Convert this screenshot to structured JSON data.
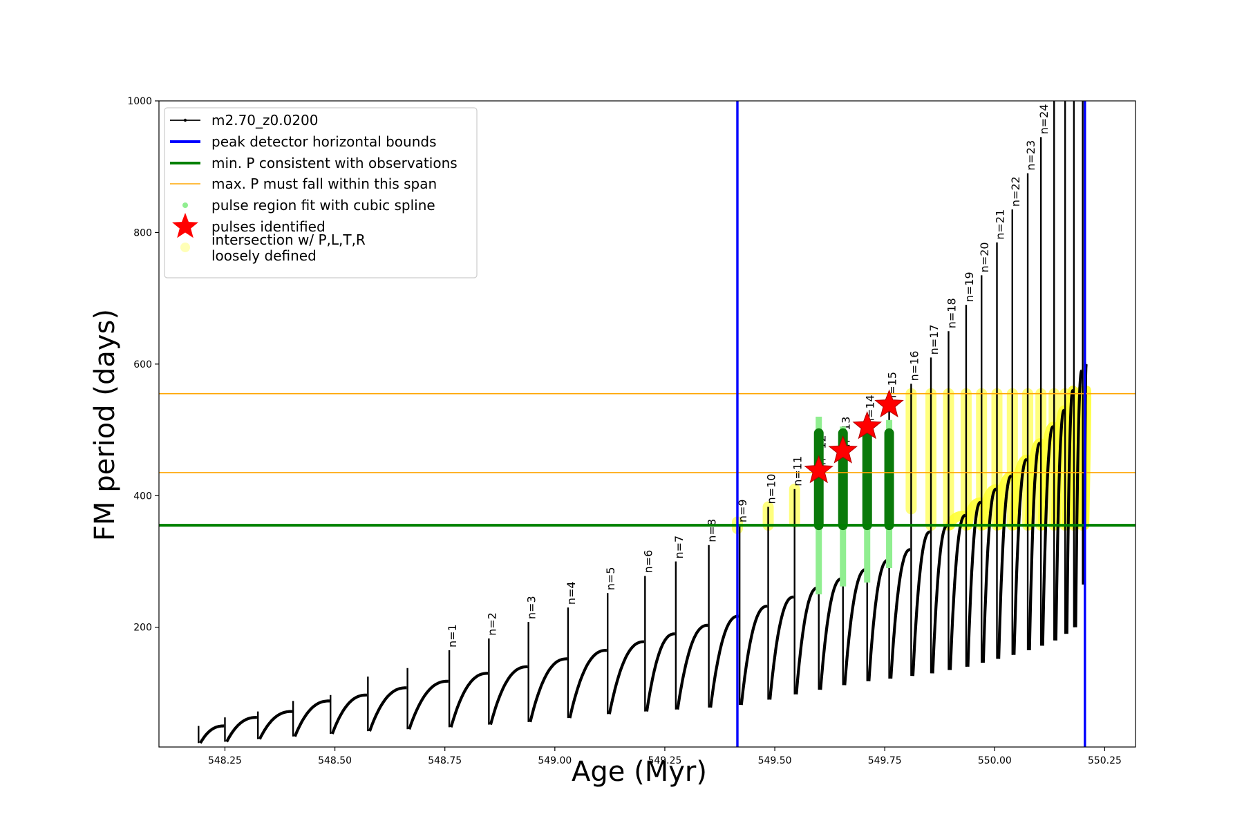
{
  "chart_data": {
    "type": "line",
    "title": "",
    "xlabel": "Age (Myr)",
    "ylabel": "FM period (days)",
    "xlim": [
      548.1,
      550.32
    ],
    "ylim": [
      18,
      1000
    ],
    "xticks": [
      548.25,
      548.5,
      548.75,
      549.0,
      549.25,
      549.5,
      549.75,
      550.0,
      550.25
    ],
    "xtick_labels": [
      "548.25",
      "548.50",
      "548.75",
      "549.00",
      "549.25",
      "549.50",
      "549.75",
      "550.00",
      "550.25"
    ],
    "yticks": [
      200,
      400,
      600,
      800,
      1000
    ],
    "ytick_labels": [
      "200",
      "400",
      "600",
      "800",
      "1000"
    ],
    "grid": false,
    "legend_position": "top-left",
    "legend": [
      {
        "label": "m2.70_z0.0200",
        "kind": "line-marker",
        "color": "#000000"
      },
      {
        "label": "peak detector horizontal bounds",
        "kind": "line",
        "color": "#0000ff"
      },
      {
        "label": "min. P consistent with observations",
        "kind": "line",
        "color": "#008000"
      },
      {
        "label": "max. P must fall within this span",
        "kind": "line",
        "color": "#ffa500"
      },
      {
        "label": "pulse region fit with cubic spline",
        "kind": "dot",
        "color": "#90ee90"
      },
      {
        "label": "pulses identified",
        "kind": "star",
        "color": "#ff0000"
      },
      {
        "label": "intersection w/ P,L,T,R\nloosely defined",
        "kind": "dot",
        "color": "#ffff99"
      }
    ],
    "reference_lines": {
      "vertical_blue": [
        549.415,
        550.205
      ],
      "horizontal_green": [
        355
      ],
      "horizontal_orange": [
        435,
        555
      ]
    },
    "series": [
      {
        "name": "m2.70_z0.0200",
        "color": "#000000",
        "cycles": [
          {
            "start": 548.19,
            "low": 24,
            "top": 50,
            "peak": 50
          },
          {
            "start": 548.25,
            "low": 26,
            "top": 63,
            "peak": 63
          },
          {
            "start": 548.325,
            "low": 30,
            "top": 72,
            "peak": 72
          },
          {
            "start": 548.405,
            "low": 34,
            "top": 88,
            "peak": 88
          },
          {
            "start": 548.49,
            "low": 38,
            "top": 97,
            "peak": 97
          },
          {
            "start": 548.575,
            "low": 42,
            "top": 108,
            "peak": 125
          },
          {
            "start": 548.665,
            "low": 45,
            "top": 118,
            "peak": 138
          },
          {
            "start": 548.76,
            "low": 48,
            "top": 130,
            "peak": 165,
            "label": "n=1"
          },
          {
            "start": 548.85,
            "low": 52,
            "top": 140,
            "peak": 183,
            "label": "n=2"
          },
          {
            "start": 548.94,
            "low": 56,
            "top": 152,
            "peak": 208,
            "label": "n=3"
          },
          {
            "start": 549.03,
            "low": 62,
            "top": 165,
            "peak": 230,
            "label": "n=4"
          },
          {
            "start": 549.12,
            "low": 68,
            "top": 178,
            "peak": 252,
            "label": "n=5"
          },
          {
            "start": 549.205,
            "low": 72,
            "top": 190,
            "peak": 278,
            "label": "n=6"
          },
          {
            "start": 549.275,
            "low": 75,
            "top": 203,
            "peak": 300,
            "label": "n=7"
          },
          {
            "start": 549.35,
            "low": 78,
            "top": 217,
            "peak": 325,
            "label": "n=8"
          },
          {
            "start": 549.42,
            "low": 82,
            "top": 232,
            "peak": 355,
            "label": "n=9"
          },
          {
            "start": 549.485,
            "low": 90,
            "top": 246,
            "peak": 383,
            "label": "n=10"
          },
          {
            "start": 549.545,
            "low": 98,
            "top": 260,
            "peak": 410,
            "label": "n=11"
          },
          {
            "start": 549.6,
            "low": 105,
            "top": 274,
            "peak": 442,
            "label": "n=12"
          },
          {
            "start": 549.655,
            "low": 112,
            "top": 288,
            "peak": 470,
            "label": "n=13"
          },
          {
            "start": 549.71,
            "low": 118,
            "top": 302,
            "peak": 503,
            "label": "n=14"
          },
          {
            "start": 549.76,
            "low": 122,
            "top": 318,
            "peak": 538,
            "label": "n=15"
          },
          {
            "start": 549.81,
            "low": 126,
            "top": 345,
            "peak": 570,
            "label": "n=16"
          },
          {
            "start": 549.855,
            "low": 130,
            "top": 355,
            "peak": 610,
            "label": "n=17"
          },
          {
            "start": 549.895,
            "low": 135,
            "top": 370,
            "peak": 650,
            "label": "n=18"
          },
          {
            "start": 549.935,
            "low": 140,
            "top": 390,
            "peak": 690,
            "label": "n=19"
          },
          {
            "start": 549.97,
            "low": 146,
            "top": 410,
            "peak": 735,
            "label": "n=20"
          },
          {
            "start": 550.005,
            "low": 152,
            "top": 430,
            "peak": 785,
            "label": "n=21"
          },
          {
            "start": 550.04,
            "low": 158,
            "top": 455,
            "peak": 835,
            "label": "n=22"
          },
          {
            "start": 550.075,
            "low": 165,
            "top": 480,
            "peak": 890,
            "label": "n=23"
          },
          {
            "start": 550.105,
            "low": 172,
            "top": 505,
            "peak": 945,
            "label": "n=24"
          },
          {
            "start": 550.135,
            "low": 180,
            "top": 530,
            "peak": 1000
          },
          {
            "start": 550.16,
            "low": 190,
            "top": 560,
            "peak": 1000
          },
          {
            "start": 550.18,
            "low": 200,
            "top": 590,
            "peak": 1000
          },
          {
            "start": 550.2,
            "low": 265,
            "top": 600,
            "peak": 1000
          }
        ],
        "end_x": 550.21
      }
    ],
    "pulse_regions": [
      {
        "x": 549.6,
        "spline_low": 250,
        "spline_high": 520,
        "fit_low": 355,
        "fit_high": 495
      },
      {
        "x": 549.655,
        "spline_low": 262,
        "spline_high": 505,
        "fit_low": 355,
        "fit_high": 495
      },
      {
        "x": 549.71,
        "spline_low": 268,
        "spline_high": 500,
        "fit_low": 355,
        "fit_high": 495
      },
      {
        "x": 549.76,
        "spline_low": 290,
        "spline_high": 515,
        "fit_low": 355,
        "fit_high": 495
      }
    ],
    "pulses_identified": [
      {
        "x": 549.6,
        "y": 438
      },
      {
        "x": 549.655,
        "y": 468
      },
      {
        "x": 549.71,
        "y": 505
      },
      {
        "x": 549.76,
        "y": 538
      }
    ],
    "loosely_defined": [
      {
        "x": 549.415,
        "low": 350,
        "high": 360
      },
      {
        "x": 549.485,
        "low": 355,
        "high": 383
      },
      {
        "x": 549.545,
        "low": 360,
        "high": 410
      },
      {
        "x": 549.81,
        "low": 380,
        "high": 555
      },
      {
        "x": 549.855,
        "low": 355,
        "high": 555
      },
      {
        "x": 549.895,
        "low": 355,
        "high": 555
      },
      {
        "x": 549.935,
        "low": 355,
        "high": 555
      },
      {
        "x": 549.97,
        "low": 355,
        "high": 555
      },
      {
        "x": 550.005,
        "low": 355,
        "high": 555
      },
      {
        "x": 550.04,
        "low": 355,
        "high": 555
      },
      {
        "x": 550.075,
        "low": 355,
        "high": 555
      },
      {
        "x": 550.105,
        "low": 355,
        "high": 555
      },
      {
        "x": 550.135,
        "low": 355,
        "high": 555
      },
      {
        "x": 550.16,
        "low": 355,
        "high": 555
      },
      {
        "x": 550.18,
        "low": 355,
        "high": 555
      },
      {
        "x": 550.2,
        "low": 355,
        "high": 555
      }
    ]
  }
}
